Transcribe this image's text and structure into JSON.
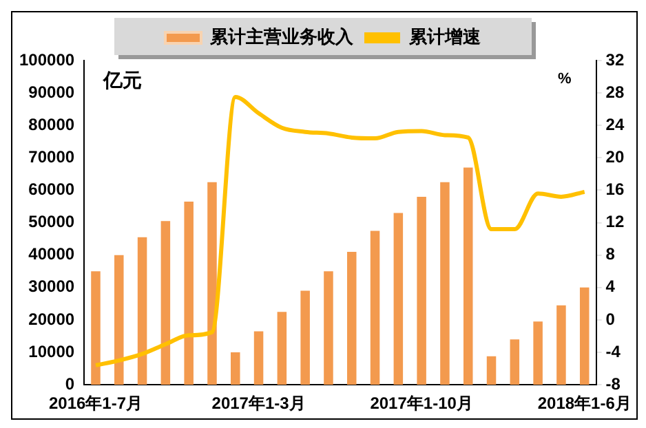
{
  "chart_data": {
    "type": "bar",
    "ylabel": "亿元",
    "y2label": "%",
    "categories": [
      "2016年1-7月",
      null,
      null,
      null,
      null,
      null,
      null,
      "2017年1-3月",
      null,
      null,
      null,
      null,
      null,
      null,
      "2017年1-10月",
      null,
      null,
      null,
      null,
      null,
      null,
      "2018年1-6月"
    ],
    "series": [
      {
        "name": "累计主营业务收入",
        "color": "#f39a4e",
        "values": [
          35000,
          40000,
          45500,
          50500,
          56500,
          62500,
          10000,
          16500,
          22500,
          29000,
          35000,
          41000,
          47500,
          53000,
          58000,
          62500,
          67000,
          8800,
          14000,
          19500,
          24500,
          30000
        ]
      },
      {
        "name": "累计增速",
        "type": "line",
        "axis": "y2",
        "color": "#ffc000",
        "values": [
          -5.6,
          -5,
          -4.2,
          -3,
          -1.9,
          -1.5,
          27.5,
          25.5,
          23.7,
          23.2,
          23,
          22.5,
          22.4,
          23.2,
          23.3,
          22.8,
          22.5,
          11.2,
          11.2,
          15.6,
          15.2,
          15.8
        ]
      }
    ],
    "ylim": [
      0,
      100000
    ],
    "yticks": [
      0,
      10000,
      20000,
      30000,
      40000,
      50000,
      60000,
      70000,
      80000,
      90000,
      100000
    ],
    "y2lim": [
      -8,
      32
    ],
    "y2ticks": [
      -8,
      -4,
      0,
      4,
      8,
      12,
      16,
      20,
      24,
      28,
      32
    ],
    "grid": false,
    "legend": "top",
    "marker": "none",
    "line_style": "solid"
  }
}
